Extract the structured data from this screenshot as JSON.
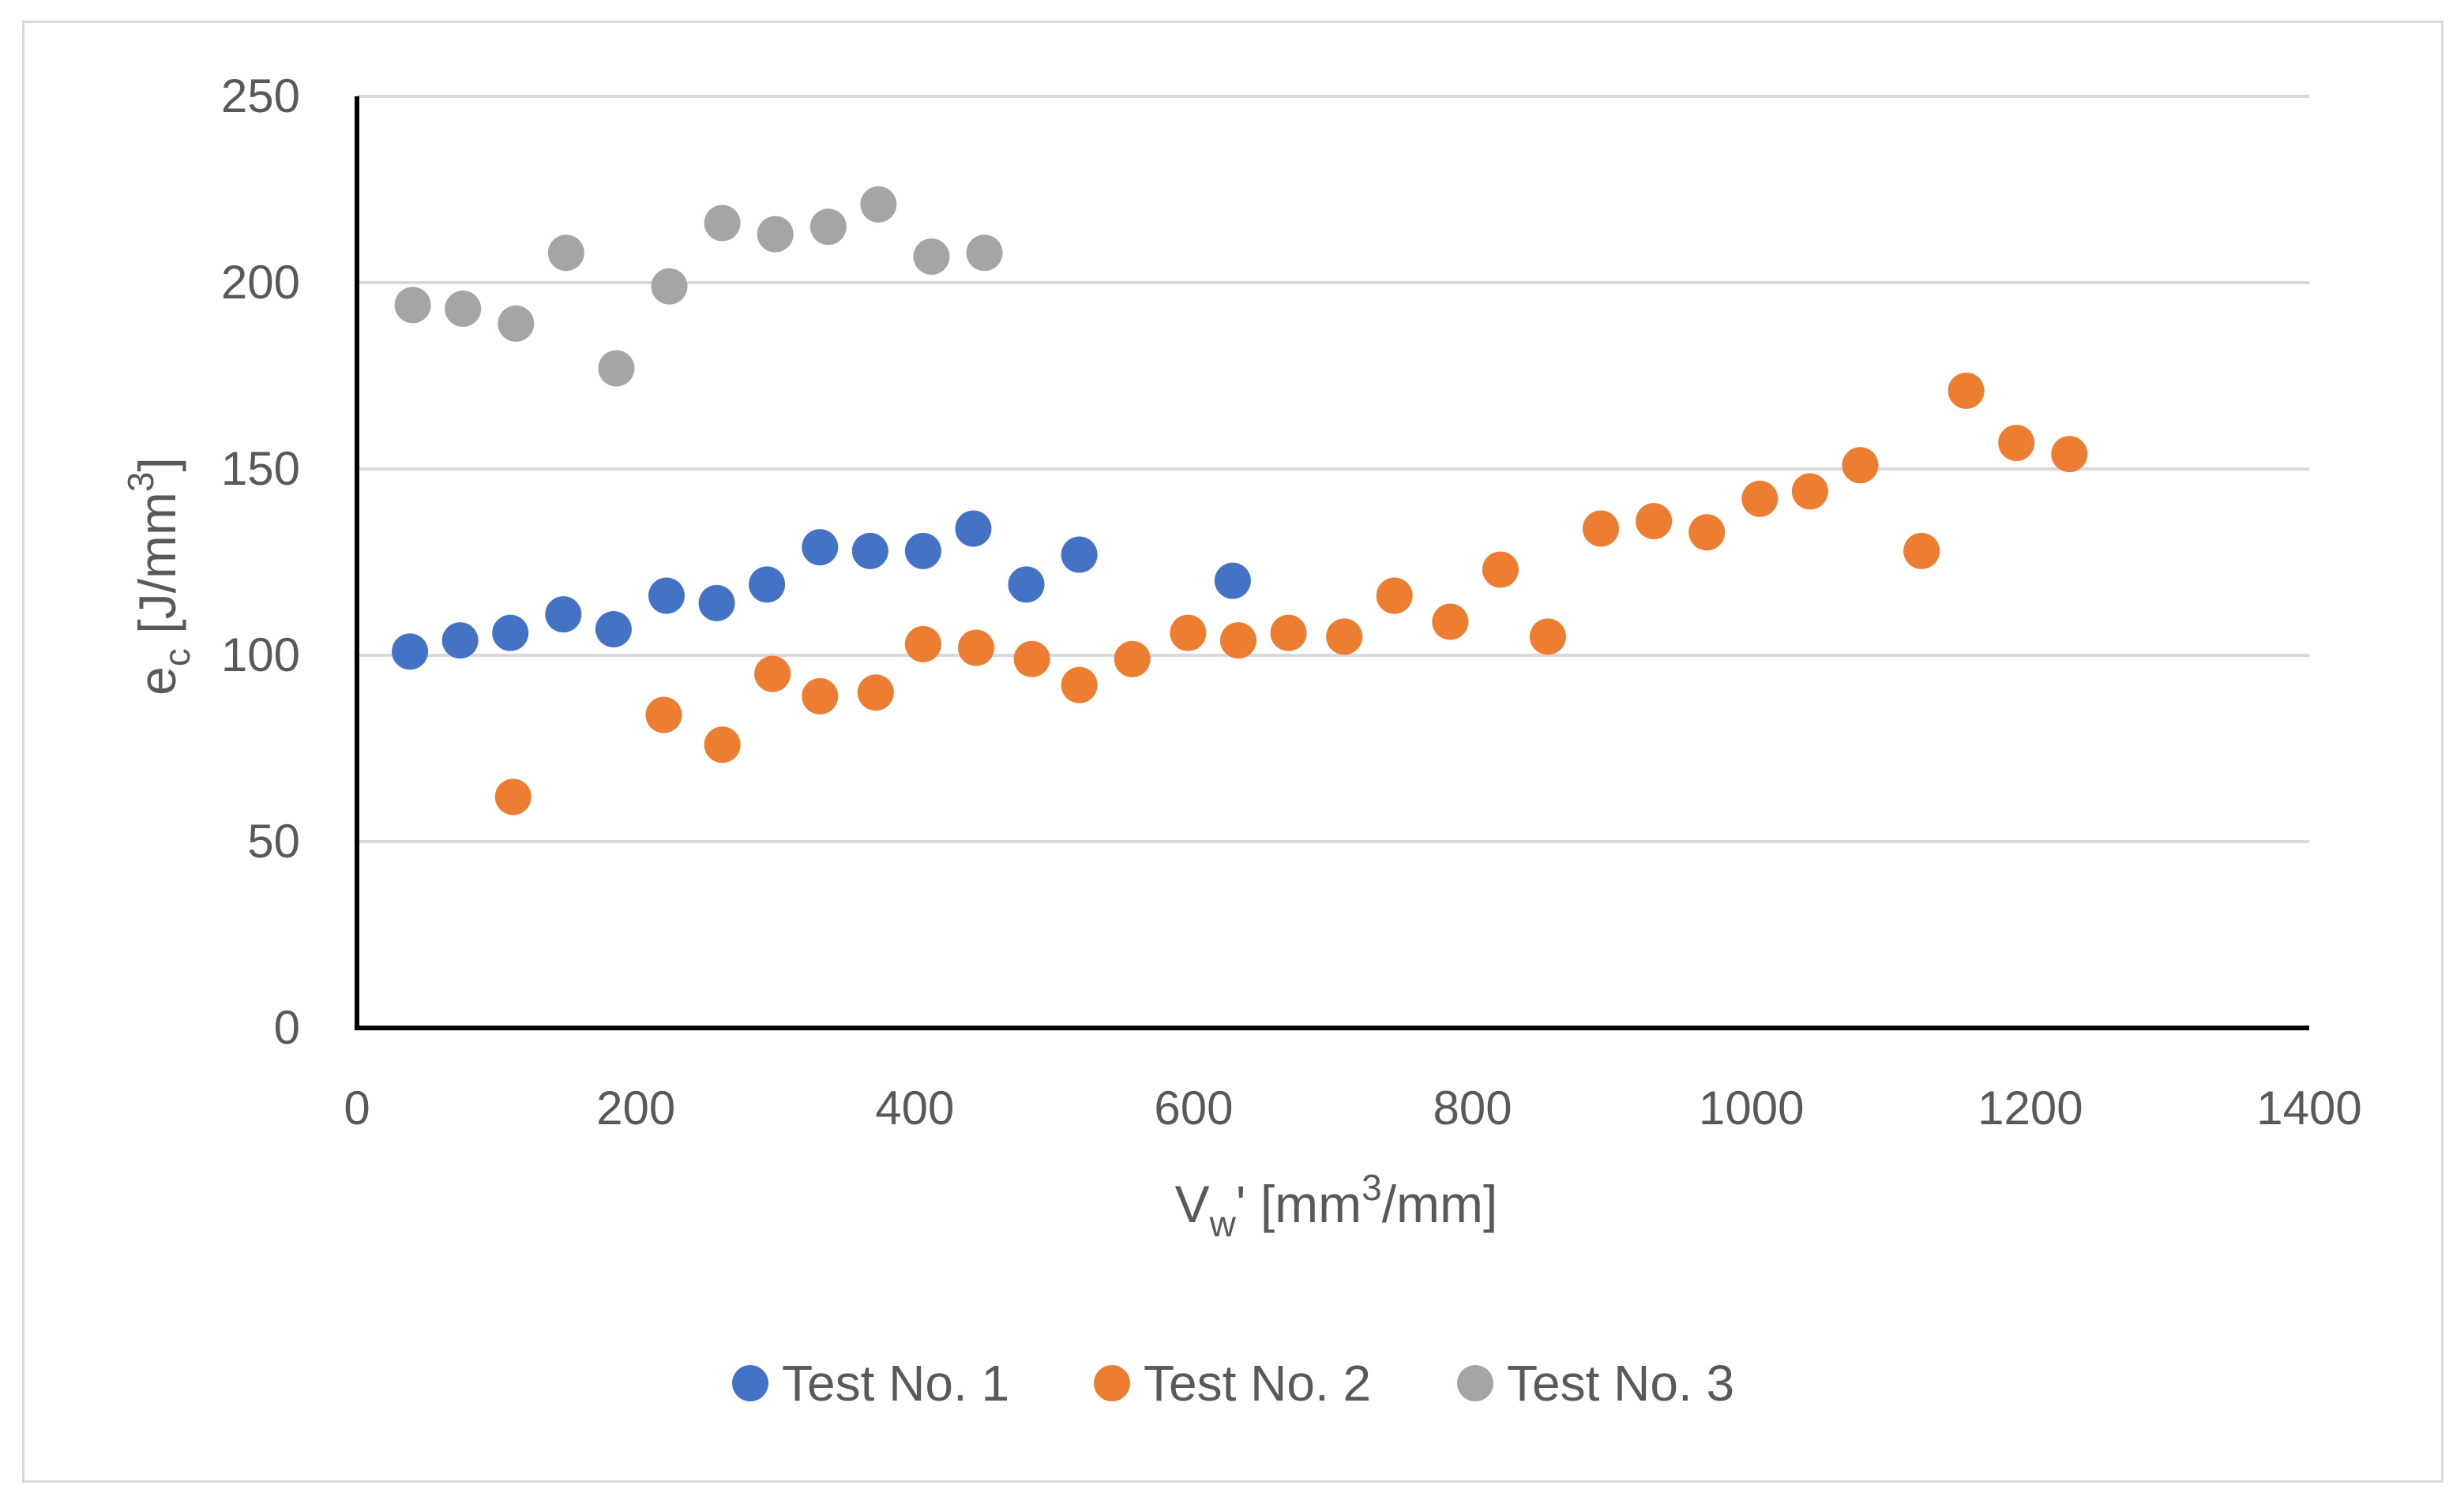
{
  "chart_data": {
    "type": "scatter",
    "title": "",
    "xlabel": "V",
    "xlabel_sub": "w",
    "xlabel_tail": "' [mm",
    "xlabel_sup": "3",
    "xlabel_end": "/mm]",
    "ylabel": "e",
    "ylabel_sub": "c",
    "ylabel_tail": " [J/mm",
    "ylabel_sup": "3",
    "ylabel_end": "]",
    "xlim": [
      0,
      1400
    ],
    "ylim": [
      0,
      250
    ],
    "xticks": [
      0,
      200,
      400,
      600,
      800,
      1000,
      1200,
      1400
    ],
    "yticks": [
      0,
      50,
      100,
      150,
      200,
      250
    ],
    "grid": "horizontal",
    "legend_position": "bottom",
    "series": [
      {
        "name": "Test No. 1",
        "color": "#4472c4",
        "points": [
          [
            38,
            101
          ],
          [
            74,
            104
          ],
          [
            110,
            106
          ],
          [
            148,
            111
          ],
          [
            184,
            107
          ],
          [
            222,
            116
          ],
          [
            258,
            114
          ],
          [
            294,
            119
          ],
          [
            332,
            129
          ],
          [
            368,
            128
          ],
          [
            406,
            128
          ],
          [
            442,
            134
          ],
          [
            480,
            119
          ],
          [
            518,
            127
          ],
          [
            628,
            120
          ]
        ]
      },
      {
        "name": "Test No. 2",
        "color": "#ed7d31",
        "points": [
          [
            112,
            62
          ],
          [
            220,
            84
          ],
          [
            262,
            76
          ],
          [
            298,
            95
          ],
          [
            332,
            89
          ],
          [
            372,
            90
          ],
          [
            406,
            103
          ],
          [
            444,
            102
          ],
          [
            484,
            99
          ],
          [
            518,
            92
          ],
          [
            556,
            99
          ],
          [
            596,
            106
          ],
          [
            632,
            104
          ],
          [
            668,
            106
          ],
          [
            708,
            105
          ],
          [
            744,
            116
          ],
          [
            784,
            109
          ],
          [
            820,
            123
          ],
          [
            854,
            105
          ],
          [
            892,
            134
          ],
          [
            930,
            136
          ],
          [
            968,
            133
          ],
          [
            1006,
            142
          ],
          [
            1042,
            144
          ],
          [
            1078,
            151
          ],
          [
            1122,
            128
          ],
          [
            1154,
            171
          ],
          [
            1190,
            157
          ],
          [
            1228,
            154
          ]
        ]
      },
      {
        "name": "Test No. 3",
        "color": "#a5a5a5",
        "points": [
          [
            40,
            194
          ],
          [
            76,
            193
          ],
          [
            114,
            189
          ],
          [
            150,
            208
          ],
          [
            186,
            177
          ],
          [
            224,
            199
          ],
          [
            262,
            216
          ],
          [
            300,
            213
          ],
          [
            338,
            215
          ],
          [
            374,
            221
          ],
          [
            412,
            207
          ],
          [
            450,
            208
          ]
        ]
      }
    ]
  }
}
